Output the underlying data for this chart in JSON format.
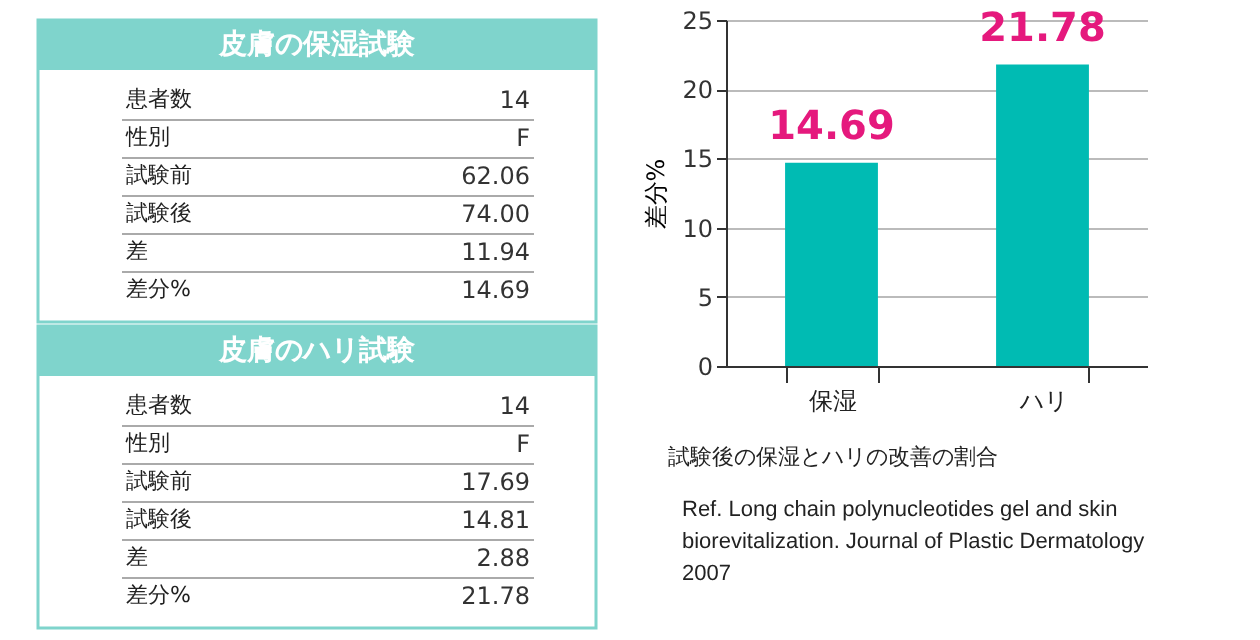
{
  "chart_data": [
    {
      "type": "other",
      "title": "皮膚の保湿試験",
      "categories": [
        "患者数",
        "性別",
        "試験前",
        "試験後",
        "差",
        "差分%"
      ],
      "value_labels": [
        "14",
        "F",
        "62.06",
        "74.00",
        "11.94",
        "14.69"
      ],
      "color": "#7fd4cc"
    },
    {
      "type": "other",
      "title": "皮膚のハリ試験",
      "categories": [
        "患者数",
        "性別",
        "試験前",
        "試験後",
        "差",
        "差分%"
      ],
      "value_labels": [
        "14",
        "F",
        "17.69",
        "14.81",
        "2.88",
        "21.78"
      ],
      "color": "#7fd4cc"
    },
    {
      "type": "bar",
      "categories": [
        "保湿",
        "ハリ"
      ],
      "values": [
        14.69,
        21.78
      ],
      "color": "#00bbb3",
      "ylabel": "差分%",
      "ylim": [
        0,
        25
      ],
      "yticks": [
        0,
        5,
        10,
        15,
        20,
        25
      ],
      "grid": "y",
      "data_labels": true,
      "annotations": [
        "試験後の保湿とハリの改善の割合",
        "Ref. Long chain polynucleotides gel and skin biorevitalization. Journal of Plastic Dermatology 2007"
      ]
    }
  ]
}
